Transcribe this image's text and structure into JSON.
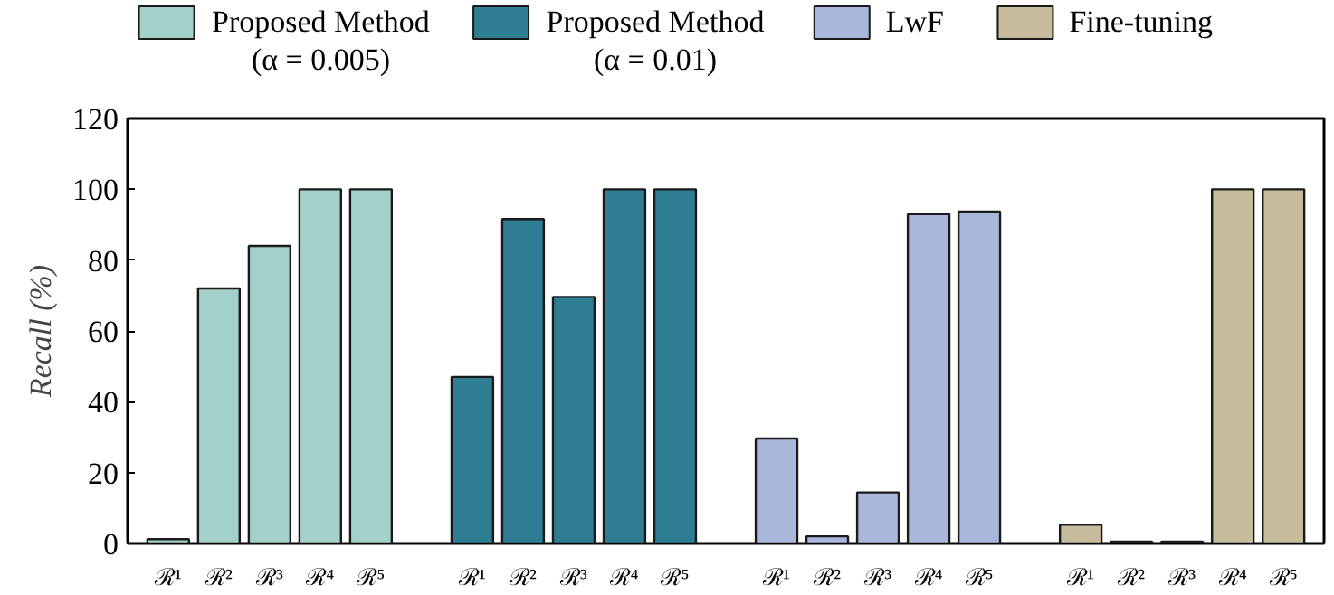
{
  "chart_data": {
    "type": "bar",
    "ylabel": "Recall (%)",
    "categories": [
      "ℛ¹",
      "ℛ²",
      "ℛ³",
      "ℛ⁴",
      "ℛ⁵",
      null,
      "ℛ¹",
      "ℛ²",
      "ℛ³",
      "ℛ⁴",
      "ℛ⁵",
      null,
      "ℛ¹",
      "ℛ²",
      "ℛ³",
      "ℛ⁴",
      "ℛ⁵",
      null,
      "ℛ¹",
      "ℛ²",
      "ℛ³",
      "ℛ⁴",
      "ℛ⁵"
    ],
    "series": [
      {
        "name": "Proposed Method\n(α = 0.005)",
        "color": "#a3d0c8",
        "values": [
          1.2,
          72,
          84,
          100,
          100,
          null,
          null,
          null,
          null,
          null,
          null,
          null,
          null,
          null,
          null,
          null,
          null,
          null,
          null,
          null,
          null,
          null,
          null
        ]
      },
      {
        "name": "Proposed Method\n(α = 0.01)",
        "color": "#2e7d92",
        "values": [
          null,
          null,
          null,
          null,
          null,
          null,
          47,
          91.6,
          69.6,
          100,
          100,
          null,
          null,
          null,
          null,
          null,
          null,
          null,
          null,
          null,
          null,
          null,
          null
        ]
      },
      {
        "name": "LwF",
        "color": "#a9b7da",
        "values": [
          null,
          null,
          null,
          null,
          null,
          null,
          null,
          null,
          null,
          null,
          null,
          null,
          29.6,
          2,
          14.4,
          93,
          93.7,
          null,
          null,
          null,
          null,
          null,
          null
        ]
      },
      {
        "name": "Fine-tuning",
        "color": "#c7bc9e",
        "values": [
          null,
          null,
          null,
          null,
          null,
          null,
          null,
          null,
          null,
          null,
          null,
          null,
          null,
          null,
          null,
          null,
          null,
          null,
          5.3,
          0.5,
          0.5,
          100,
          100
        ]
      }
    ],
    "ylim": [
      0,
      120
    ],
    "yticks": [
      0,
      20,
      40,
      60,
      80,
      100,
      120
    ],
    "grid": false,
    "legend": "top"
  }
}
